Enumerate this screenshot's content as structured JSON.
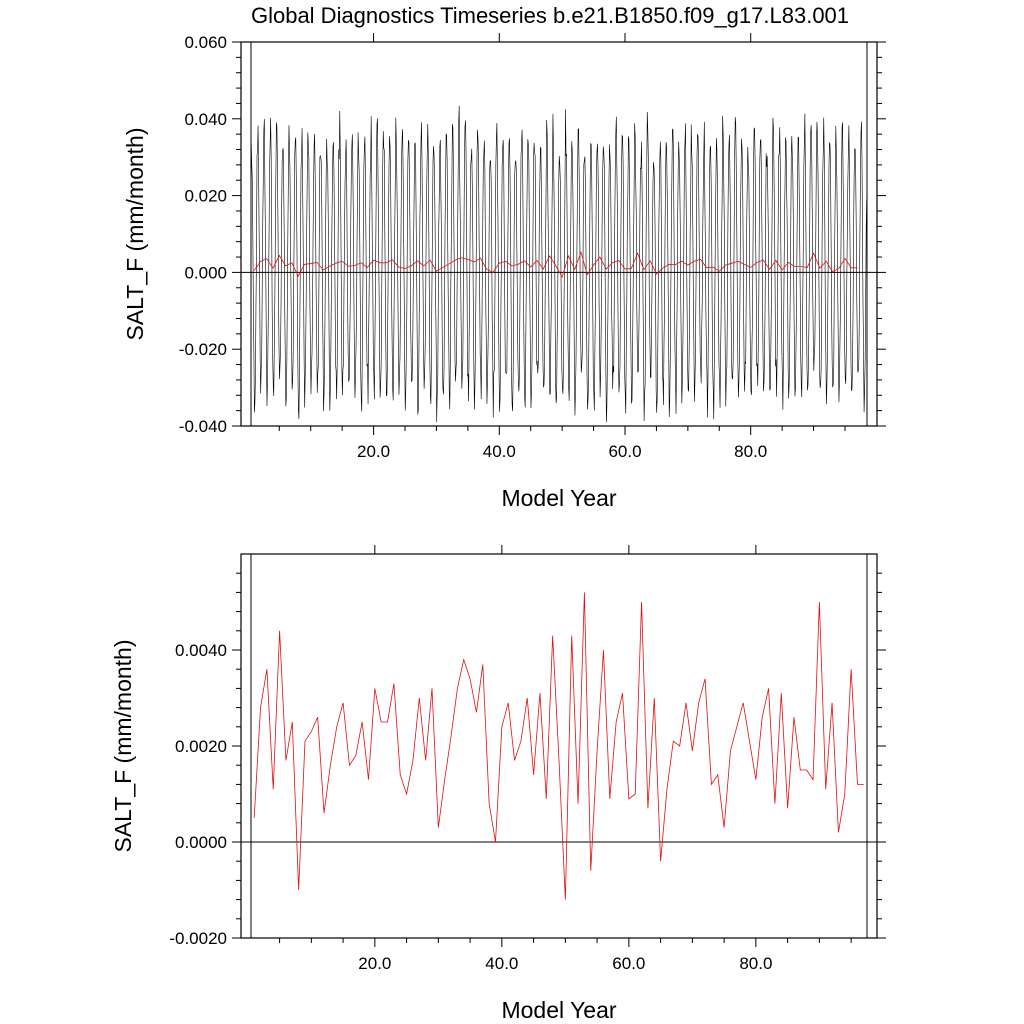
{
  "title": "Global Diagnostics Timeseries b.e21.B1850.f09_g17.L83.001",
  "colors": {
    "monthly": "#000000",
    "annual": "#e01010",
    "axes": "#000000"
  },
  "chart_data": [
    {
      "type": "line",
      "xlabel": "Model Year",
      "ylabel": "SALT_F (mm/month)",
      "xlim": [
        0.5,
        98.5
      ],
      "ylim": [
        -0.04,
        0.06
      ],
      "xticks": [
        20,
        40,
        60,
        80
      ],
      "xtick_labels": [
        "20.0",
        "40.0",
        "60.0",
        "80.0"
      ],
      "yticks": [
        -0.04,
        -0.02,
        0.0,
        0.02,
        0.04,
        0.06
      ],
      "ytick_labels": [
        "-0.040",
        "-0.020",
        "0.000",
        "0.020",
        "0.040",
        "0.060"
      ],
      "zero_line": true,
      "series": [
        {
          "role": "monthly",
          "color": "#000000",
          "x_start": 0.54,
          "x_step": 0.08333,
          "seasonal_peak": 0.036,
          "seasonal_trough": -0.032,
          "note_values": "monthly values oscillate with annual cycle between about -0.039 and 0.052"
        },
        {
          "role": "annual_mean",
          "color": "#e01010",
          "x": "years 1-97",
          "values_ref": "annual_values"
        }
      ]
    },
    {
      "type": "line",
      "xlabel": "Model Year",
      "ylabel": "SALT_F (mm/month)",
      "xlim": [
        0.5,
        97.5
      ],
      "ylim": [
        -0.002,
        0.006
      ],
      "xticks": [
        20,
        40,
        60,
        80
      ],
      "xtick_labels": [
        "20.0",
        "40.0",
        "60.0",
        "80.0"
      ],
      "yticks": [
        -0.002,
        0.0,
        0.002,
        0.004
      ],
      "ytick_labels": [
        "-0.0020",
        "0.0000",
        "0.0020",
        "0.0040"
      ],
      "zero_line": true,
      "series": [
        {
          "role": "annual_mean",
          "color": "#e01010",
          "values_ref": "annual_values"
        }
      ]
    }
  ],
  "annual_values": [
    0.0005,
    0.0028,
    0.0036,
    0.0011,
    0.0044,
    0.0017,
    0.0025,
    -0.001,
    0.0021,
    0.0023,
    0.0026,
    0.0006,
    0.0016,
    0.0024,
    0.0029,
    0.0016,
    0.0018,
    0.0025,
    0.0013,
    0.0032,
    0.0025,
    0.0025,
    0.0033,
    0.0014,
    0.001,
    0.0017,
    0.003,
    0.0017,
    0.0032,
    0.0003,
    0.0013,
    0.0022,
    0.0032,
    0.0038,
    0.0034,
    0.0027,
    0.0037,
    0.0008,
    0.0,
    0.0024,
    0.0029,
    0.0017,
    0.0021,
    0.003,
    0.0014,
    0.0031,
    0.0009,
    0.0043,
    0.0017,
    -0.0012,
    0.0043,
    0.0008,
    0.0052,
    -0.0006,
    0.0019,
    0.004,
    0.0009,
    0.0025,
    0.0031,
    0.0009,
    0.001,
    0.005,
    0.0007,
    0.003,
    -0.0004,
    0.0011,
    0.0021,
    0.002,
    0.0029,
    0.0019,
    0.0029,
    0.0034,
    0.0012,
    0.0014,
    0.0003,
    0.0019,
    0.0024,
    0.0029,
    0.0021,
    0.0013,
    0.0026,
    0.0032,
    0.0008,
    0.0031,
    0.0007,
    0.0026,
    0.0015,
    0.0015,
    0.0013,
    0.005,
    0.0011,
    0.0029,
    0.0002,
    0.001,
    0.0036,
    0.0012,
    0.0012
  ]
}
